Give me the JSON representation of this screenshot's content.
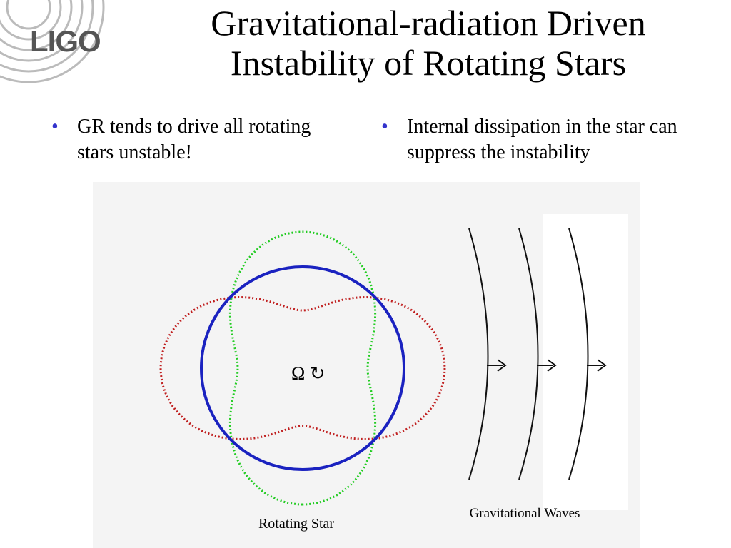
{
  "header": {
    "logo": "LIGO",
    "title": [
      "Gravitational-radiation Driven",
      "Instability of Rotating Stars"
    ]
  },
  "bullets": [
    "GR tends to drive all rotating stars unstable!",
    "Internal dissipation in the star can suppress the instability"
  ],
  "diagram": {
    "symbol": "Ω ↻",
    "star_label": "Rotating Star",
    "waves_label": "Gravitational Waves"
  }
}
